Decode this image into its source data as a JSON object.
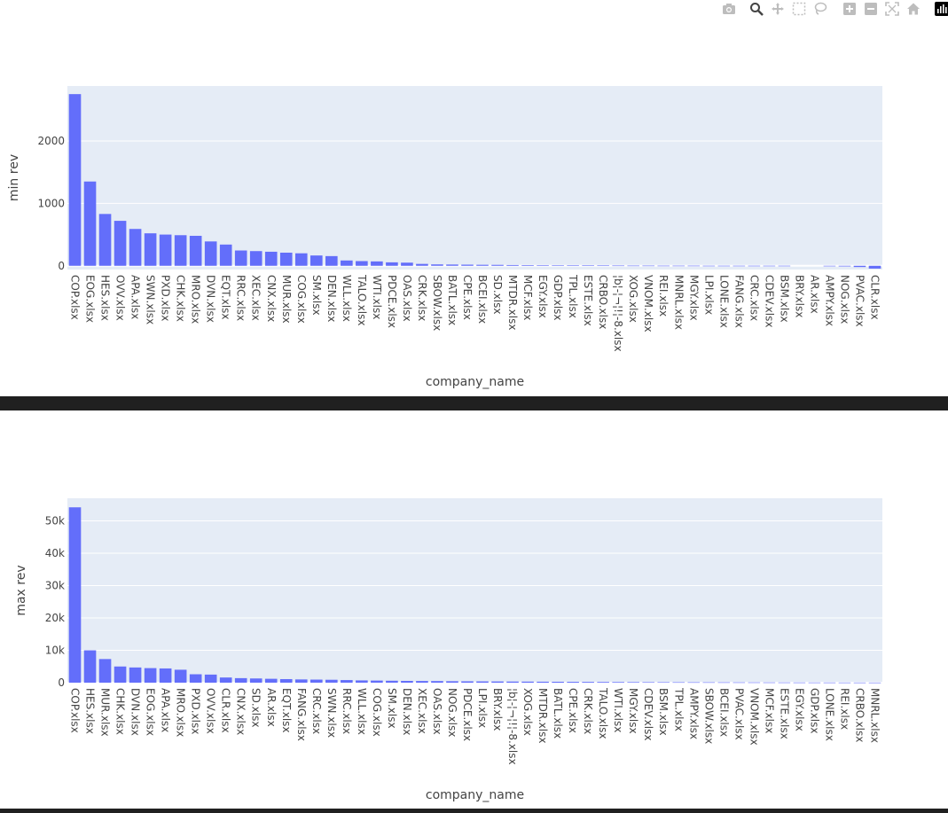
{
  "modebar": {
    "icons": [
      "camera-icon",
      "zoom-icon",
      "pan-icon",
      "box-select-icon",
      "lasso-icon",
      "zoom-in-icon",
      "zoom-out-icon",
      "autoscale-icon",
      "reset-axes-icon",
      "plotly-logo-icon"
    ]
  },
  "chart_data": [
    {
      "type": "bar",
      "xlabel": "company_name",
      "ylabel": "min rev",
      "ylim": [
        -60,
        2880
      ],
      "yticks": [
        0,
        1000,
        2000
      ],
      "ytick_labels": [
        "0",
        "1000",
        "2000"
      ],
      "grid": true,
      "bar_color": "#636efa",
      "plot_bg": "#e5ecf6",
      "categories": [
        "COP.xlsx",
        "EOG.xlsx",
        "HES.xlsx",
        "OVV.xlsx",
        "APA.xlsx",
        "SWN.xlsx",
        "PXD.xlsx",
        "CHK.xlsx",
        "MRO.xlsx",
        "DVN.xlsx",
        "EQT.xlsx",
        "RRC.xlsx",
        "XEC.xlsx",
        "CNX.xlsx",
        "MUR.xlsx",
        "COG.xlsx",
        "SM.xlsx",
        "DEN.xlsx",
        "WLL.xlsx",
        "TALO.xlsx",
        "WTI.xlsx",
        "PDCE.xlsx",
        "OAS.xlsx",
        "CRK.xlsx",
        "SBOW.xlsx",
        "BATL.xlsx",
        "CPE.xlsx",
        "BCEI.xlsx",
        "SD.xlsx",
        "MTDR.xlsx",
        "MCF.xlsx",
        "EGY.xlsx",
        "GDP.xlsx",
        "TPL.xlsx",
        "ESTE.xlsx",
        "CRBO.xlsx",
        "¦b¦-¦¬¦!¦-8.xlsx",
        "XOG.xlsx",
        "VNOM.xlsx",
        "REI.xlsx",
        "MNRL.xlsx",
        "MGY.xlsx",
        "LPI.xlsx",
        "LONE.xlsx",
        "FANG.xlsx",
        "CRC.xlsx",
        "CDEV.xlsx",
        "BSM.xlsx",
        "BRY.xlsx",
        "AR.xlsx",
        "AMPY.xlsx",
        "NOG.xlsx",
        "PVAC.xlsx",
        "CLR.xlsx"
      ],
      "values": [
        2750,
        1350,
        830,
        720,
        590,
        520,
        500,
        490,
        480,
        390,
        340,
        245,
        235,
        225,
        210,
        200,
        165,
        155,
        85,
        75,
        70,
        55,
        50,
        30,
        22,
        20,
        18,
        16,
        15,
        12,
        10,
        9,
        8,
        7,
        6,
        5,
        4,
        3,
        3,
        2,
        2,
        2,
        1,
        1,
        1,
        1,
        1,
        1,
        0,
        0,
        -5,
        -10,
        -20,
        -45
      ]
    },
    {
      "type": "bar",
      "xlabel": "company_name",
      "ylabel": "max rev",
      "ylim": [
        0,
        57000
      ],
      "yticks": [
        0,
        10000,
        20000,
        30000,
        40000,
        50000
      ],
      "ytick_labels": [
        "0",
        "10k",
        "20k",
        "30k",
        "40k",
        "50k"
      ],
      "grid": true,
      "bar_color": "#636efa",
      "plot_bg": "#e5ecf6",
      "categories": [
        "COP.xlsx",
        "HES.xlsx",
        "MUR.xlsx",
        "CHK.xlsx",
        "DVN.xlsx",
        "EOG.xlsx",
        "APA.xlsx",
        "MRO.xlsx",
        "PXD.xlsx",
        "OVV.xlsx",
        "CLR.xlsx",
        "CNX.xlsx",
        "SD.xlsx",
        "AR.xlsx",
        "EQT.xlsx",
        "FANG.xlsx",
        "CRC.xlsx",
        "SWN.xlsx",
        "RRC.xlsx",
        "WLL.xlsx",
        "COG.xlsx",
        "SM.xlsx",
        "DEN.xlsx",
        "XEC.xlsx",
        "OAS.xlsx",
        "NOG.xlsx",
        "PDCE.xlsx",
        "LPI.xlsx",
        "BRY.xlsx",
        "¦b¦-¦¬¦!¦-8.xlsx",
        "XOG.xlsx",
        "MTDR.xlsx",
        "BATL.xlsx",
        "CPE.xlsx",
        "CRK.xlsx",
        "TALO.xlsx",
        "WTI.xlsx",
        "MGY.xlsx",
        "CDEV.xlsx",
        "BSM.xlsx",
        "TPL.xlsx",
        "AMPY.xlsx",
        "SBOW.xlsx",
        "BCEI.xlsx",
        "PVAC.xlsx",
        "VNOM.xlsx",
        "MCF.xlsx",
        "ESTE.xlsx",
        "EGY.xlsx",
        "GDP.xlsx",
        "LONE.xlsx",
        "REI.xlsx",
        "CRBO.xlsx",
        "MNRL.xlsx"
      ],
      "values": [
        54200,
        10000,
        7300,
        5000,
        4700,
        4500,
        4400,
        4000,
        2600,
        2500,
        1600,
        1400,
        1300,
        1200,
        1100,
        1000,
        950,
        900,
        800,
        700,
        650,
        600,
        550,
        520,
        500,
        450,
        420,
        400,
        380,
        350,
        330,
        300,
        280,
        260,
        240,
        220,
        200,
        180,
        160,
        150,
        140,
        130,
        120,
        110,
        100,
        90,
        80,
        70,
        60,
        55,
        50,
        45,
        40,
        35
      ]
    }
  ]
}
